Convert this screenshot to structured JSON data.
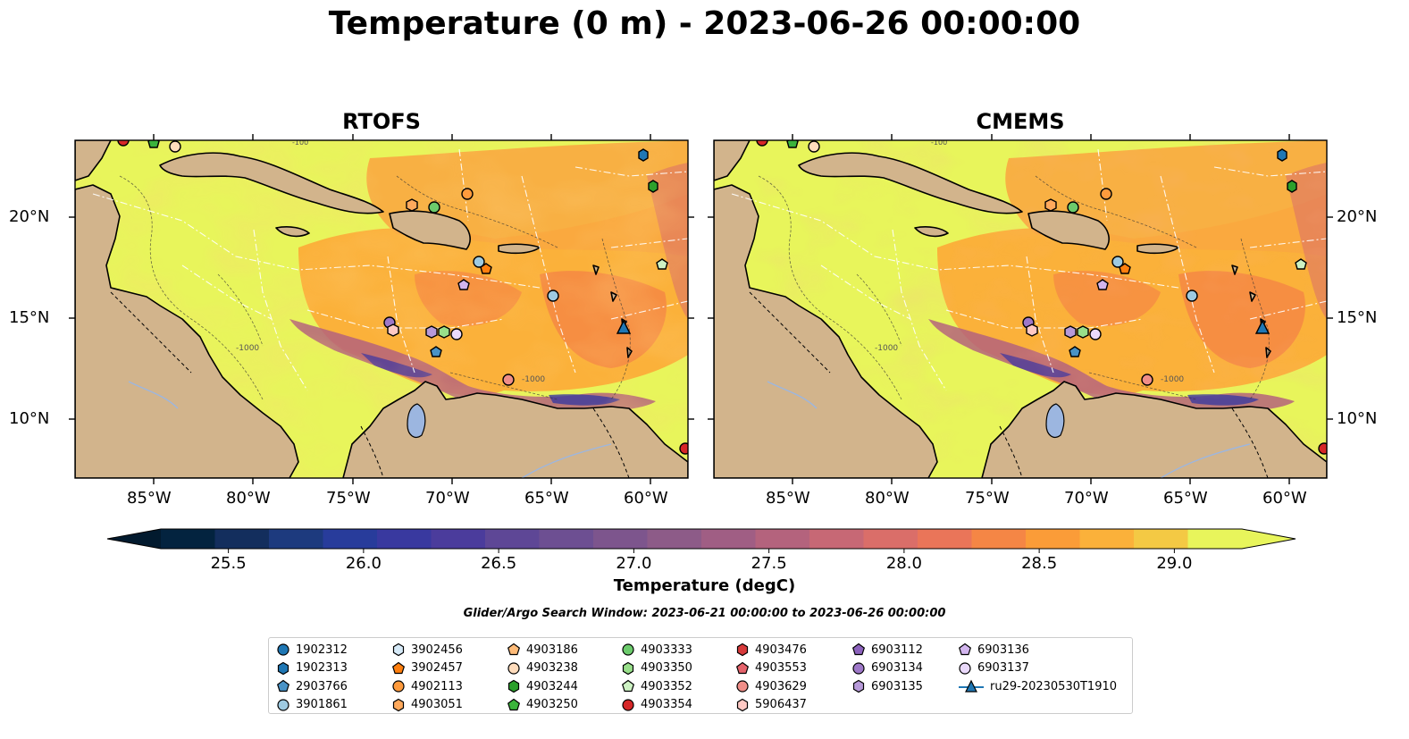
{
  "title": "Temperature (0 m) - 2023-06-26 00:00:00",
  "panels": [
    {
      "title": "RTOFS"
    },
    {
      "title": "CMEMS"
    }
  ],
  "map_axes": {
    "lon_range": [
      -89,
      -58
    ],
    "lat_range": [
      7,
      24
    ],
    "x_ticks": [
      "85°W",
      "80°W",
      "75°W",
      "70°W",
      "65°W",
      "60°W"
    ],
    "y_ticks": [
      "20°N",
      "15°N",
      "10°N"
    ],
    "land_color": "#d2b48c",
    "bathymetry_labels": [
      "-100",
      "-1000"
    ]
  },
  "colorbar": {
    "label": "Temperature (degC)",
    "ticks": [
      "25.5",
      "26.0",
      "26.5",
      "27.0",
      "27.5",
      "28.0",
      "28.5",
      "29.0"
    ],
    "range": [
      25.25,
      29.25
    ],
    "extend": "both",
    "colors": [
      "#03233f",
      "#132e5d",
      "#1d3a7e",
      "#283c9b",
      "#39399f",
      "#4b3c9c",
      "#5e4796",
      "#6d4f92",
      "#7d558d",
      "#8d5b88",
      "#a05e84",
      "#b4637d",
      "#c76875",
      "#da6e69",
      "#ea7559",
      "#f58645",
      "#fb9c38",
      "#fbb13a",
      "#f4c944",
      "#e8f55b"
    ]
  },
  "search_window": "Glider/Argo Search Window: 2023-06-21 00:00:00 to 2023-06-26 00:00:00",
  "legend": {
    "columns": [
      [
        {
          "label": "1902312",
          "marker": "circle",
          "color": "#1f77b4"
        },
        {
          "label": "1902313",
          "marker": "hexagon",
          "color": "#1f77b4"
        },
        {
          "label": "2903766",
          "marker": "pentagon",
          "color": "#4a93c6"
        },
        {
          "label": "3901861",
          "marker": "circle",
          "color": "#9ecae1"
        }
      ],
      [
        {
          "label": "3902456",
          "marker": "hexagon",
          "color": "#d6eaf8"
        },
        {
          "label": "3902457",
          "marker": "pentagon",
          "color": "#ff7f0e"
        },
        {
          "label": "4902113",
          "marker": "circle",
          "color": "#ff9b3d"
        },
        {
          "label": "4903051",
          "marker": "hexagon",
          "color": "#ffa95c"
        }
      ],
      [
        {
          "label": "4903186",
          "marker": "pentagon",
          "color": "#ffbb78"
        },
        {
          "label": "4903238",
          "marker": "circle",
          "color": "#ffdcbc"
        },
        {
          "label": "4903244",
          "marker": "hexagon",
          "color": "#2ca02c"
        },
        {
          "label": "4903250",
          "marker": "pentagon",
          "color": "#3cb43c"
        }
      ],
      [
        {
          "label": "4903333",
          "marker": "circle",
          "color": "#6ccb6c"
        },
        {
          "label": "4903350",
          "marker": "hexagon",
          "color": "#98df8a"
        },
        {
          "label": "4903352",
          "marker": "pentagon",
          "color": "#cdf2c3"
        },
        {
          "label": "4903354",
          "marker": "circle",
          "color": "#d62728"
        }
      ],
      [
        {
          "label": "4903476",
          "marker": "hexagon",
          "color": "#d73a3b"
        },
        {
          "label": "4903553",
          "marker": "pentagon",
          "color": "#e5636b"
        },
        {
          "label": "4903629",
          "marker": "circle",
          "color": "#f08e88"
        },
        {
          "label": "5906437",
          "marker": "hexagon",
          "color": "#ffc9c4"
        }
      ],
      [
        {
          "label": "6903112",
          "marker": "pentagon",
          "color": "#8c62bd"
        },
        {
          "label": "6903134",
          "marker": "circle",
          "color": "#9e78c8"
        },
        {
          "label": "6903135",
          "marker": "hexagon",
          "color": "#b79ad9"
        }
      ],
      [
        {
          "label": "6903136",
          "marker": "pentagon",
          "color": "#d2b5ee"
        },
        {
          "label": "6903137",
          "marker": "circle",
          "color": "#ead9fb"
        },
        {
          "label": "ru29-20230530T1910",
          "marker": "triangle-line",
          "color": "#1f77b4"
        }
      ]
    ]
  }
}
